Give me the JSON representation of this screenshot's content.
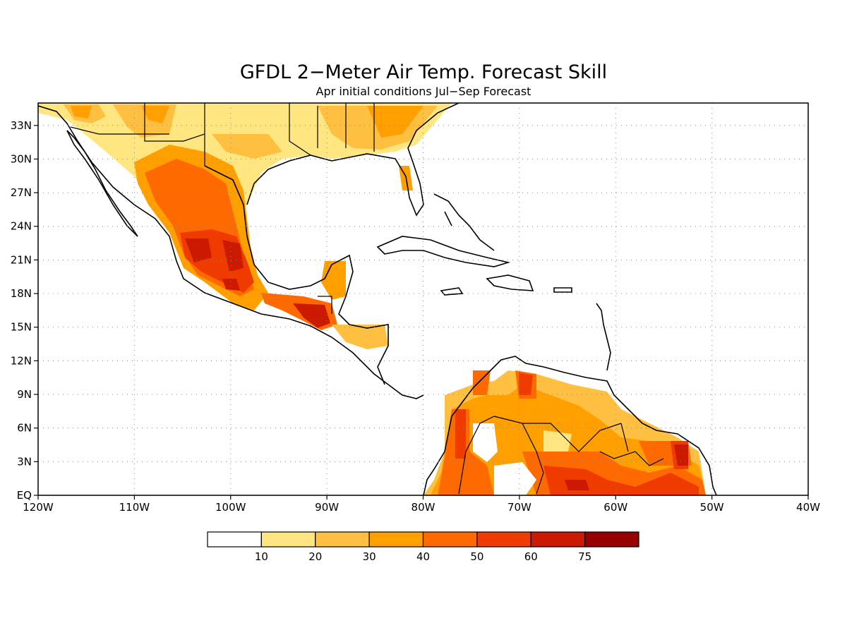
{
  "title": "GFDL 2−Meter Air Temp. Forecast Skill",
  "subtitle": "Apr initial conditions   Jul−Sep Forecast",
  "map": {
    "lon_range": [
      -120,
      -40
    ],
    "lat_range": [
      0,
      35
    ],
    "lon_ticks": [
      "120W",
      "110W",
      "100W",
      "90W",
      "80W",
      "70W",
      "60W",
      "50W",
      "40W"
    ],
    "lat_ticks": [
      "EQ",
      "3N",
      "6N",
      "9N",
      "12N",
      "15N",
      "18N",
      "21N",
      "24N",
      "27N",
      "30N",
      "33N"
    ],
    "grid": "dotted",
    "ocean_color": "#ffffff",
    "border_color": "#000000"
  },
  "legend": {
    "labels": [
      "10",
      "20",
      "30",
      "40",
      "50",
      "60",
      "75"
    ],
    "colors": [
      "#ffffff",
      "#ffe680",
      "#ffbf40",
      "#ffa000",
      "#ff6a00",
      "#f03b00",
      "#cc1a00",
      "#990000"
    ]
  }
}
